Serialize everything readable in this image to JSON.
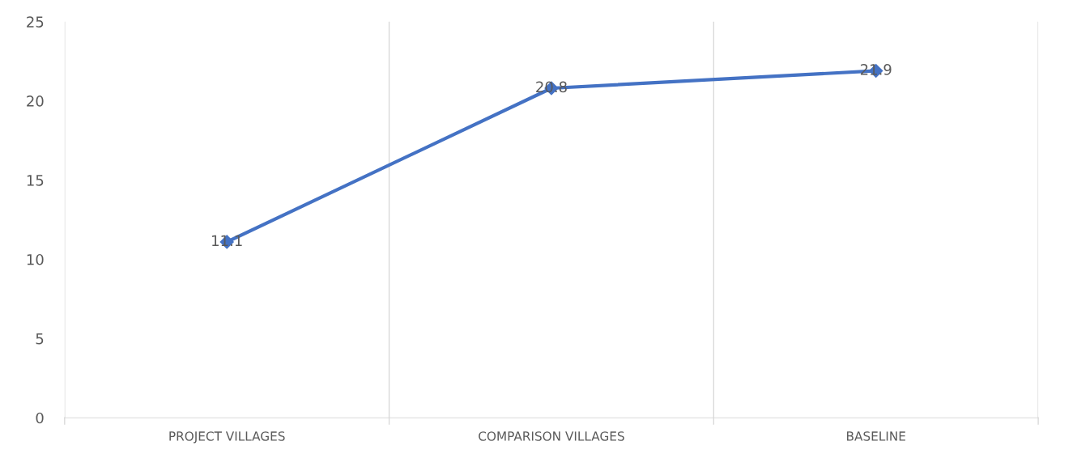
{
  "chart_data": {
    "type": "line",
    "categories": [
      "PROJECT VILLAGES",
      "COMPARISON VILLAGES",
      "BASELINE"
    ],
    "series": [
      {
        "color": "#4472c4",
        "values": [
          11.1,
          20.8,
          21.9
        ]
      }
    ],
    "ylim": [
      0,
      25
    ],
    "yticks": [
      0,
      5,
      10,
      15,
      20,
      25
    ],
    "grid": "x",
    "marker": "diamond",
    "line_style": "solid",
    "data_labels": true,
    "legend": false
  }
}
